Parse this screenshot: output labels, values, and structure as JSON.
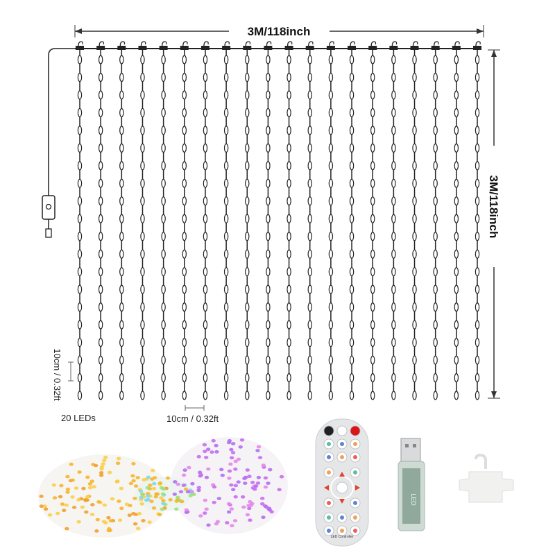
{
  "dimensions": {
    "width_label": "3M/118inch",
    "height_label": "3M/118inch"
  },
  "annotations": {
    "led_spacing_vertical": "10cm / 0.32ft",
    "led_spacing_horizontal": "10cm / 0.32ft",
    "led_count": "20 LEDs"
  },
  "curtain": {
    "strand_count": 20,
    "leds_per_strand": 20
  },
  "remote": {
    "label": "LED Controller",
    "icons": [
      "power-icon",
      "mode-icon",
      "microphone-icon"
    ]
  },
  "usb": {
    "label": "LED"
  },
  "colors": {
    "wire": "#1a1a1a",
    "remote_body": "#e4e6e8",
    "power_button": "#222222",
    "red_button": "#d9141c",
    "arrow": "#e2432a"
  }
}
